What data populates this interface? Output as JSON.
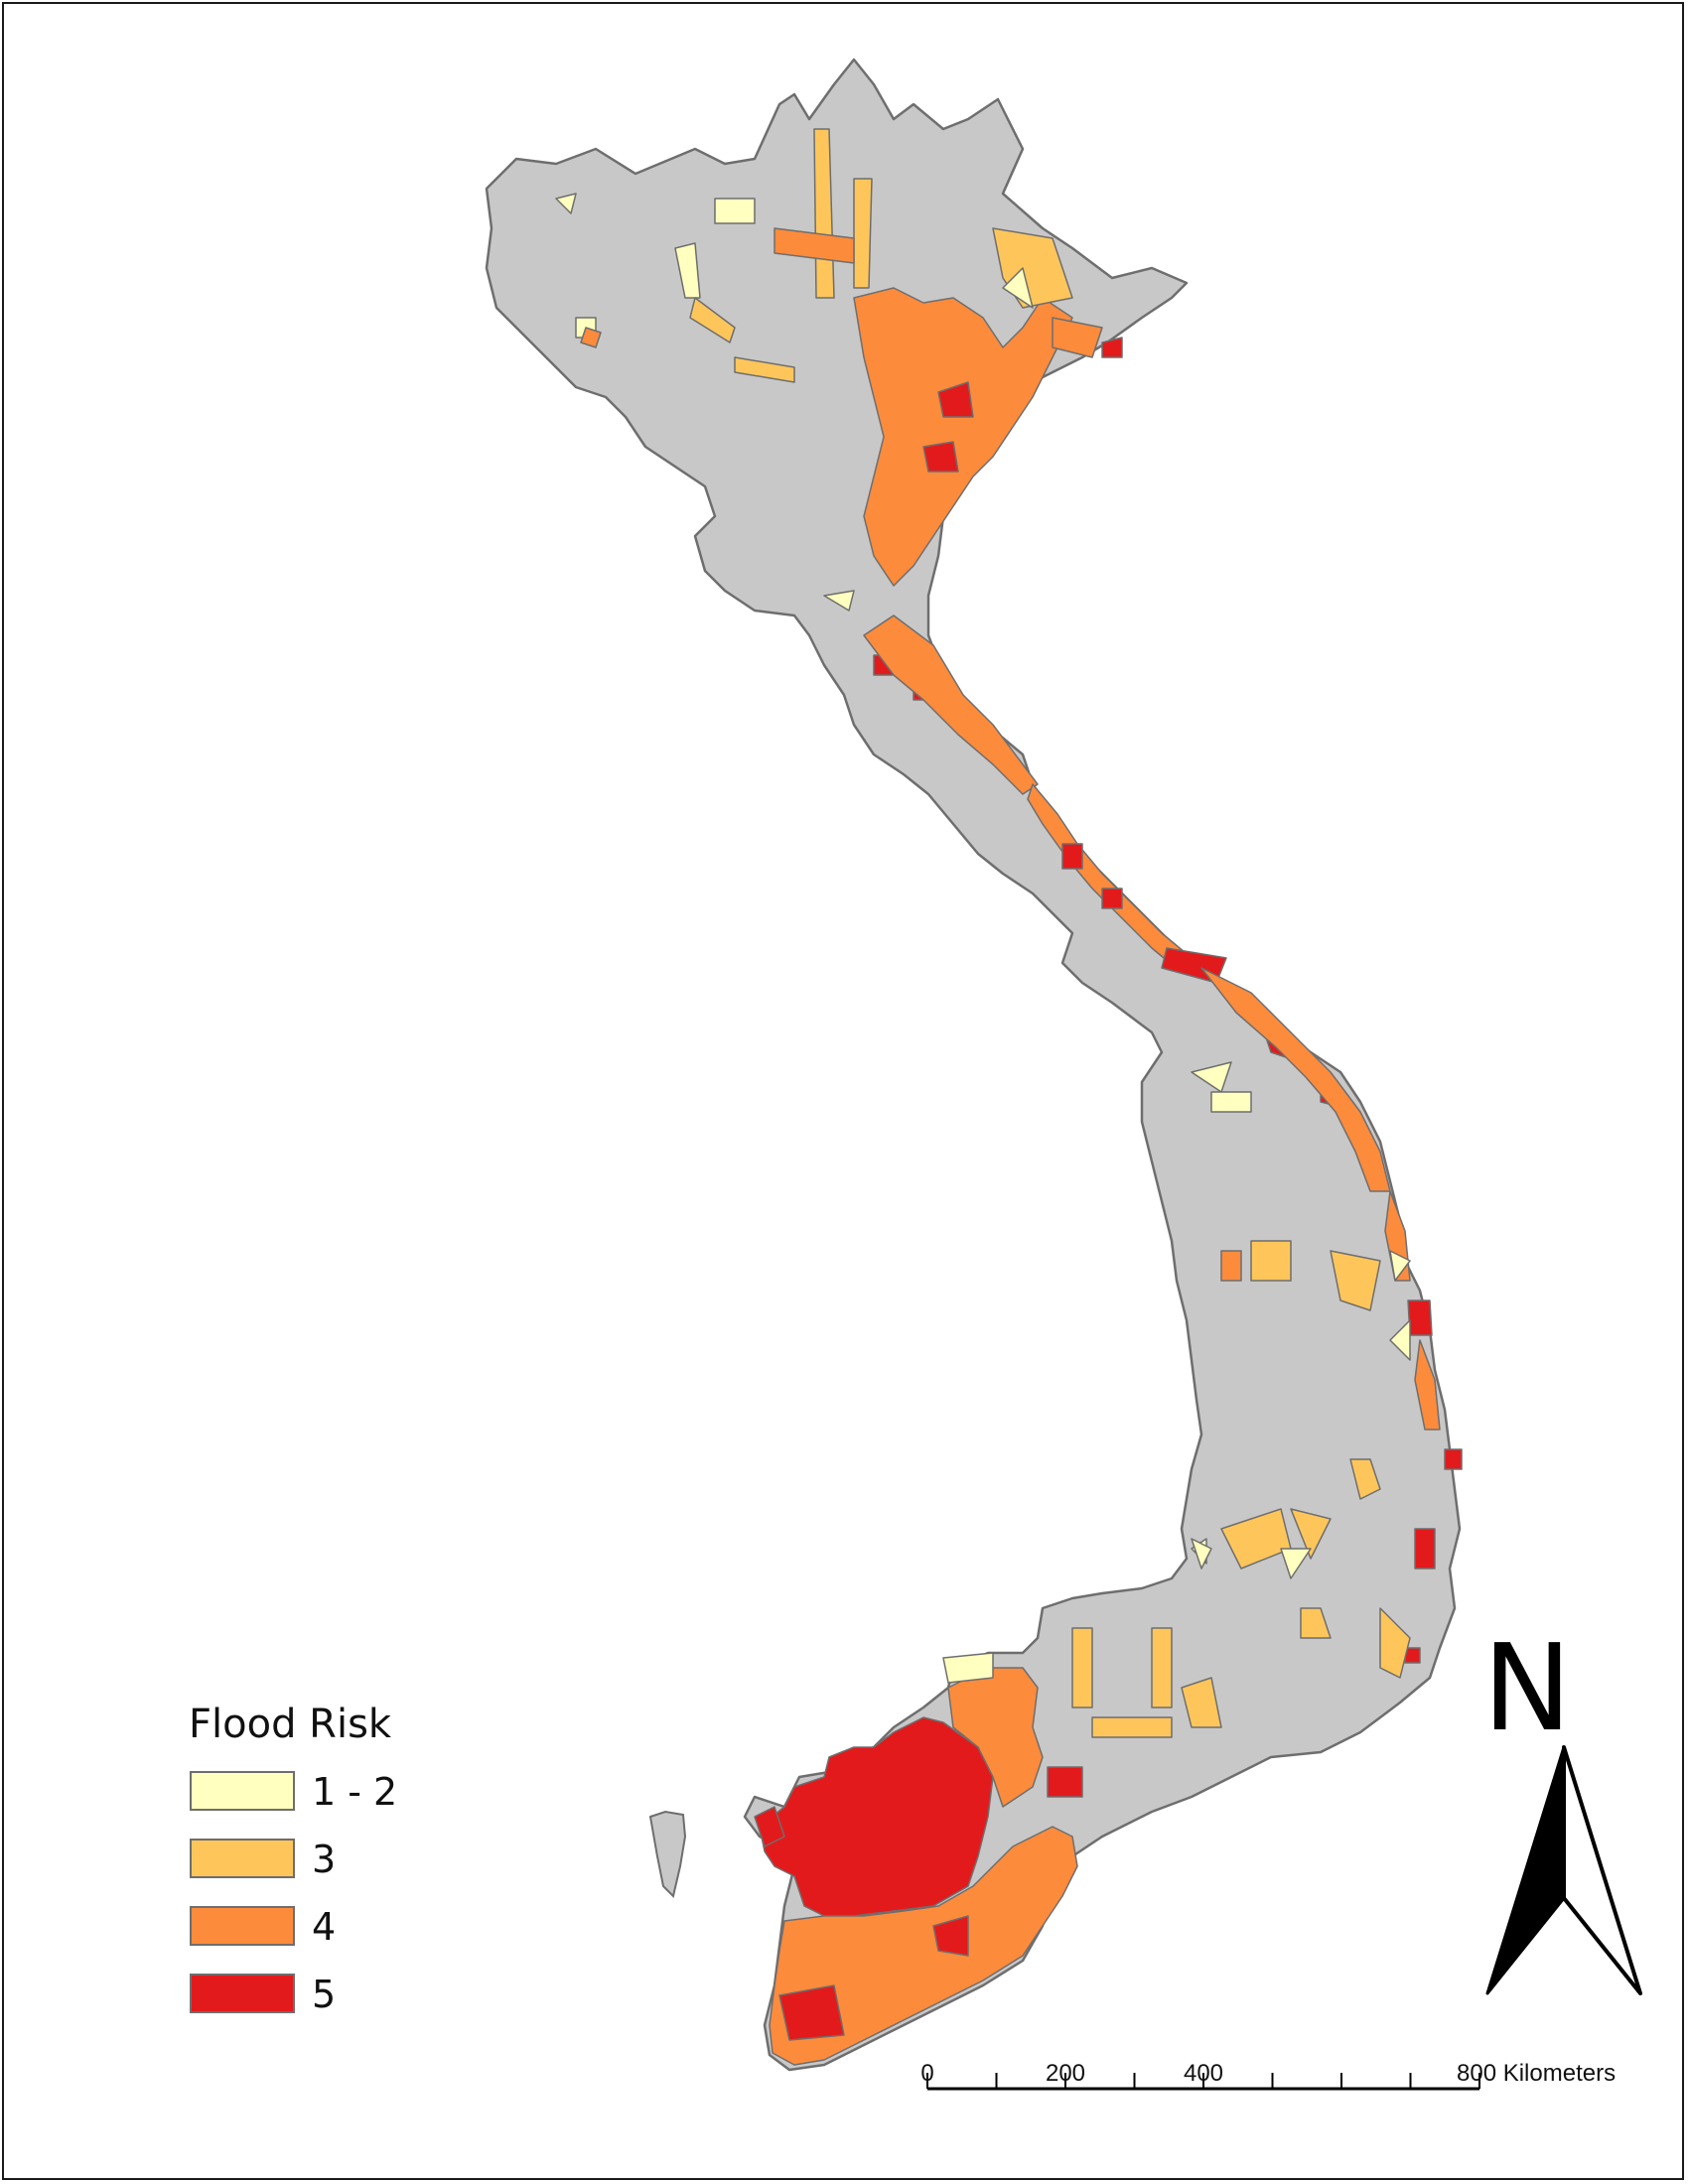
{
  "legend": {
    "title": "Flood Risk",
    "classes": [
      {
        "label": "1 - 2",
        "color": "#ffffbf"
      },
      {
        "label": "3",
        "color": "#fec65a"
      },
      {
        "label": "4",
        "color": "#fd8b3c"
      },
      {
        "label": "5",
        "color": "#e31a1c"
      }
    ]
  },
  "land_color": "#c8c8c8",
  "outline_color": "#6e6e6e",
  "north_arrow": {
    "letter": "N"
  },
  "scale_bar": {
    "labels": [
      "0",
      "200",
      "400",
      "800 Kilometers"
    ]
  }
}
